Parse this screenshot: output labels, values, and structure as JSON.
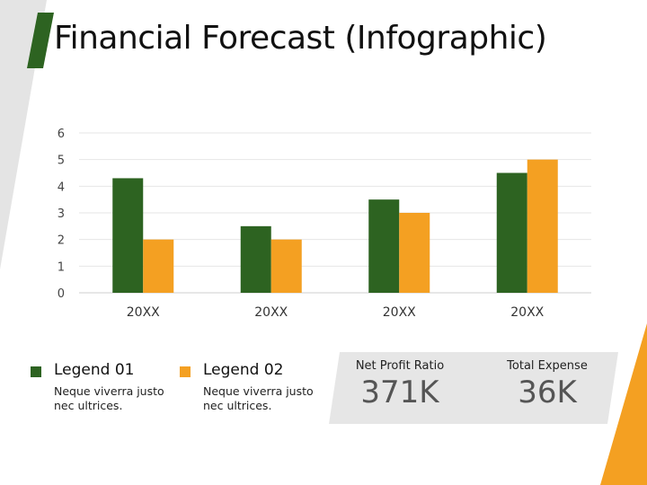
{
  "title": "Financial Forecast (Infographic)",
  "colors": {
    "green": "#2d6321",
    "orange": "#f4a022",
    "gray_deco": "#e4e4e4",
    "kpi_panel": "#e6e6e6"
  },
  "legend": [
    {
      "name": "Legend 01",
      "desc": "Neque viverra justo nec ultrices."
    },
    {
      "name": "Legend 02",
      "desc": "Neque viverra justo nec ultrices."
    }
  ],
  "kpis": [
    {
      "label": "Net Profit Ratio",
      "value": "371K"
    },
    {
      "label": "Total Expense",
      "value": "36K"
    }
  ],
  "chart_data": {
    "type": "bar",
    "categories": [
      "20XX",
      "20XX",
      "20XX",
      "20XX"
    ],
    "series": [
      {
        "name": "Legend 01",
        "color": "#2d6321",
        "values": [
          4.3,
          2.5,
          3.5,
          4.5
        ]
      },
      {
        "name": "Legend 02",
        "color": "#f4a022",
        "values": [
          2.0,
          2.0,
          3.0,
          5.0
        ]
      }
    ],
    "ylim": [
      0,
      6
    ],
    "yticks": [
      "0",
      "1",
      "2",
      "3",
      "4",
      "5",
      "6"
    ],
    "grid": true,
    "title": "",
    "xlabel": "",
    "ylabel": ""
  }
}
